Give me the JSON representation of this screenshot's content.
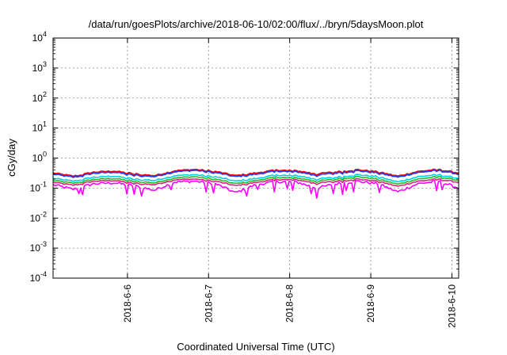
{
  "chart_data": {
    "type": "line",
    "title": "/data/run/goesPlots/archive/2018-06-10/02:00/flux/../bryn/5daysMoon.plot",
    "xlabel": "Coordinated Universal Time (UTC)",
    "ylabel": "cGy/day",
    "yscale": "log",
    "ylim": [
      0.0001,
      10000
    ],
    "xlim": [
      "2018-06-05 02:00",
      "2018-06-10 02:00"
    ],
    "x_ticks": [
      {
        "label": "2018-6-6",
        "value": "2018-06-06 00:00"
      },
      {
        "label": "2018-6-7",
        "value": "2018-06-07 00:00"
      },
      {
        "label": "2018-6-8",
        "value": "2018-06-08 00:00"
      },
      {
        "label": "2018-6-9",
        "value": "2018-06-09 00:00"
      },
      {
        "label": "2018-6-10",
        "value": "2018-06-10 00:00"
      }
    ],
    "y_ticks": [
      {
        "base": "10",
        "exp": "-4",
        "value": 0.0001
      },
      {
        "base": "10",
        "exp": "-3",
        "value": 0.001
      },
      {
        "base": "10",
        "exp": "-2",
        "value": 0.01
      },
      {
        "base": "10",
        "exp": "-1",
        "value": 0.1
      },
      {
        "base": "10",
        "exp": "0",
        "value": 1
      },
      {
        "base": "10",
        "exp": "1",
        "value": 10
      },
      {
        "base": "10",
        "exp": "2",
        "value": 100
      },
      {
        "base": "10",
        "exp": "3",
        "value": 1000
      },
      {
        "base": "10",
        "exp": "4",
        "value": 10000
      }
    ],
    "grid": true,
    "x": [
      "2018-06-05 02:00",
      "2018-06-05 08:00",
      "2018-06-05 14:00",
      "2018-06-05 20:00",
      "2018-06-06 02:00",
      "2018-06-06 08:00",
      "2018-06-06 14:00",
      "2018-06-06 20:00",
      "2018-06-07 02:00",
      "2018-06-07 08:00",
      "2018-06-07 14:00",
      "2018-06-07 20:00",
      "2018-06-08 02:00",
      "2018-06-08 08:00",
      "2018-06-08 14:00",
      "2018-06-08 20:00",
      "2018-06-09 02:00",
      "2018-06-09 08:00",
      "2018-06-09 14:00",
      "2018-06-09 20:00",
      "2018-06-10 02:00"
    ],
    "series": [
      {
        "color": "#e8000b",
        "values": [
          0.32,
          0.25,
          0.34,
          0.37,
          0.3,
          0.26,
          0.38,
          0.42,
          0.36,
          0.26,
          0.32,
          0.4,
          0.38,
          0.3,
          0.35,
          0.41,
          0.35,
          0.25,
          0.36,
          0.42,
          0.32
        ]
      },
      {
        "color": "#2040ff",
        "values": [
          0.29,
          0.23,
          0.31,
          0.34,
          0.27,
          0.24,
          0.35,
          0.39,
          0.33,
          0.24,
          0.29,
          0.37,
          0.35,
          0.27,
          0.32,
          0.38,
          0.32,
          0.23,
          0.33,
          0.39,
          0.29
        ]
      },
      {
        "color": "#00d0e0",
        "values": [
          0.21,
          0.17,
          0.23,
          0.25,
          0.2,
          0.18,
          0.26,
          0.28,
          0.24,
          0.17,
          0.21,
          0.27,
          0.26,
          0.2,
          0.23,
          0.28,
          0.24,
          0.16,
          0.24,
          0.28,
          0.21
        ]
      },
      {
        "color": "#20c020",
        "values": [
          0.18,
          0.145,
          0.195,
          0.21,
          0.17,
          0.15,
          0.22,
          0.24,
          0.2,
          0.14,
          0.18,
          0.23,
          0.22,
          0.17,
          0.2,
          0.24,
          0.2,
          0.135,
          0.2,
          0.24,
          0.18
        ]
      },
      {
        "color": "#e02080",
        "values": [
          0.155,
          0.125,
          0.17,
          0.18,
          0.145,
          0.13,
          0.19,
          0.2,
          0.17,
          0.12,
          0.155,
          0.195,
          0.19,
          0.145,
          0.17,
          0.2,
          0.17,
          0.115,
          0.17,
          0.2,
          0.155
        ]
      },
      {
        "color": "#ff00ff",
        "values": [
          0.13,
          0.09,
          0.14,
          0.15,
          0.12,
          0.085,
          0.16,
          0.17,
          0.14,
          0.07,
          0.13,
          0.165,
          0.16,
          0.1,
          0.14,
          0.17,
          0.14,
          0.075,
          0.14,
          0.17,
          0.1
        ]
      }
    ]
  }
}
